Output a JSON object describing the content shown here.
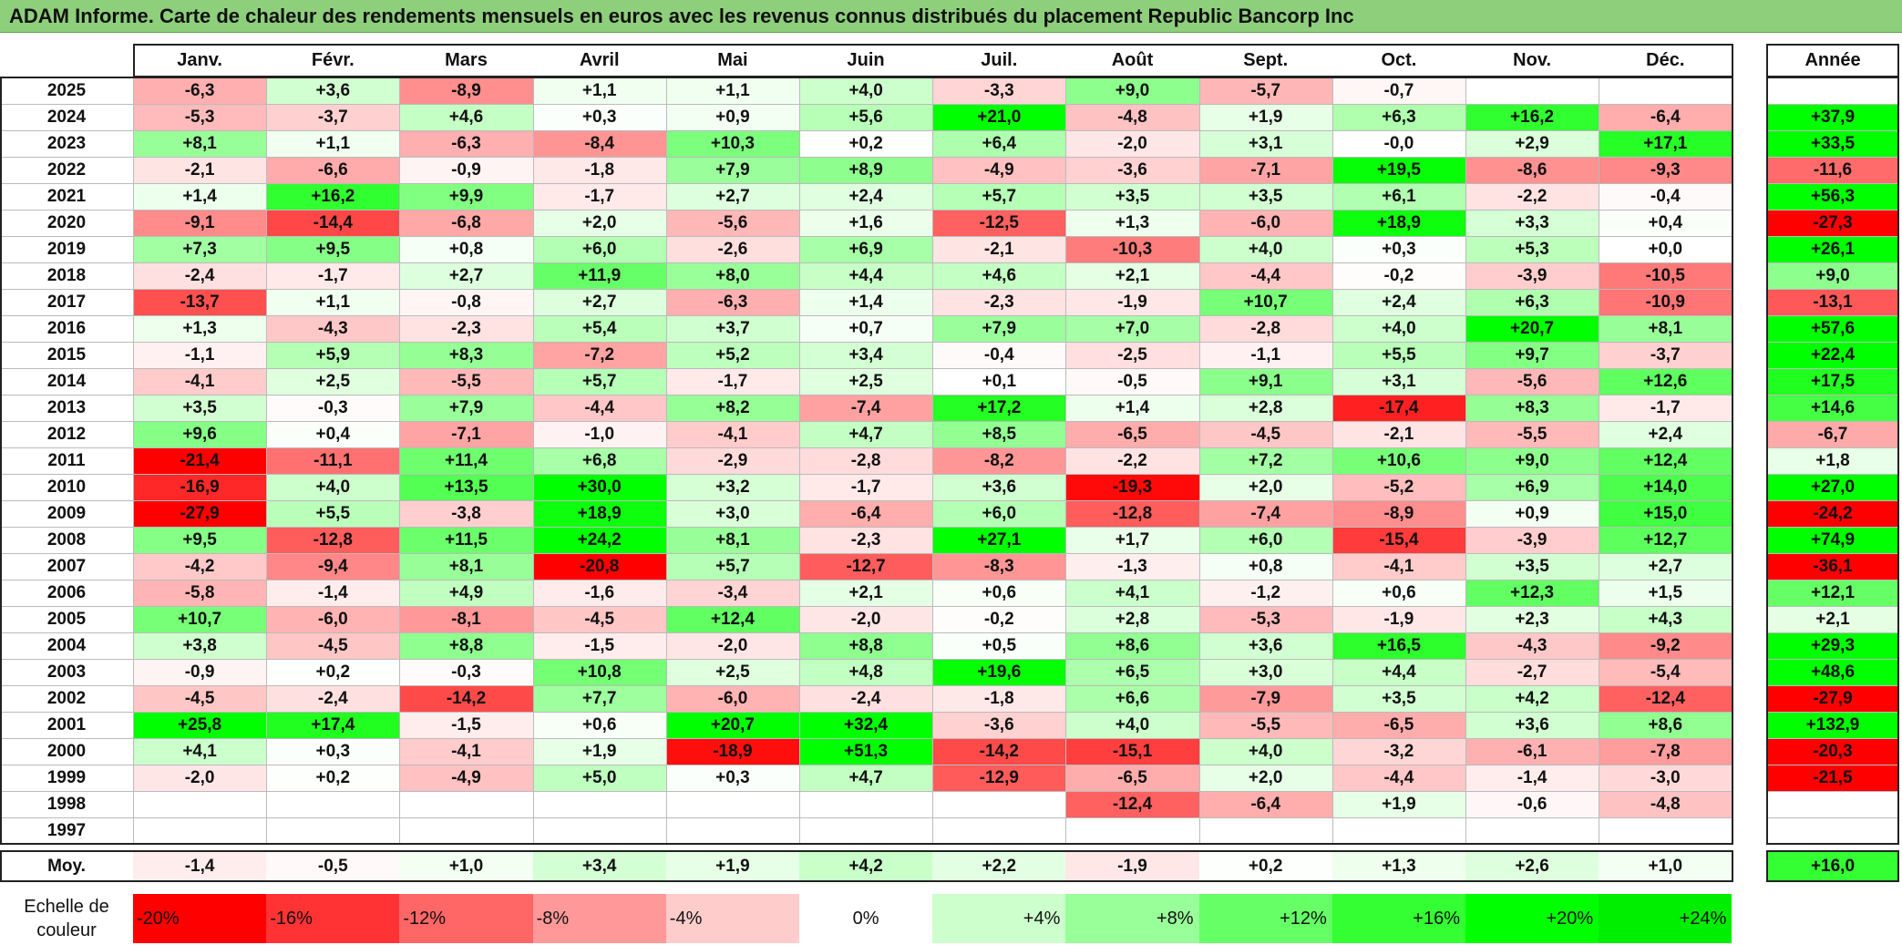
{
  "title": "ADAM Informe. Carte de chaleur des rendements mensuels en euros avec les revenus connus distribués du placement Republic Bancorp Inc",
  "chart_data": {
    "type": "heatmap",
    "columns": [
      "Janv.",
      "Févr.",
      "Mars",
      "Avril",
      "Mai",
      "Juin",
      "Juil.",
      "Août",
      "Sept.",
      "Oct.",
      "Nov.",
      "Déc."
    ],
    "year_column_label": "Année",
    "average_row_label": "Moy.",
    "rows": [
      {
        "year": "2025",
        "values": [
          "-6,3",
          "+3,6",
          "-8,9",
          "+1,1",
          "+1,1",
          "+4,0",
          "-3,3",
          "+9,0",
          "-5,7",
          "-0,7",
          "",
          ""
        ],
        "annual": ""
      },
      {
        "year": "2024",
        "values": [
          "-5,3",
          "-3,7",
          "+4,6",
          "+0,3",
          "+0,9",
          "+5,6",
          "+21,0",
          "-4,8",
          "+1,9",
          "+6,3",
          "+16,2",
          "-6,4"
        ],
        "annual": "+37,9"
      },
      {
        "year": "2023",
        "values": [
          "+8,1",
          "+1,1",
          "-6,3",
          "-8,4",
          "+10,3",
          "+0,2",
          "+6,4",
          "-2,0",
          "+3,1",
          "-0,0",
          "+2,9",
          "+17,1"
        ],
        "annual": "+33,5"
      },
      {
        "year": "2022",
        "values": [
          "-2,1",
          "-6,6",
          "-0,9",
          "-1,8",
          "+7,9",
          "+8,9",
          "-4,9",
          "-3,6",
          "-7,1",
          "+19,5",
          "-8,6",
          "-9,3"
        ],
        "annual": "-11,6"
      },
      {
        "year": "2021",
        "values": [
          "+1,4",
          "+16,2",
          "+9,9",
          "-1,7",
          "+2,7",
          "+2,4",
          "+5,7",
          "+3,5",
          "+3,5",
          "+6,1",
          "-2,2",
          "-0,4"
        ],
        "annual": "+56,3"
      },
      {
        "year": "2020",
        "values": [
          "-9,1",
          "-14,4",
          "-6,8",
          "+2,0",
          "-5,6",
          "+1,6",
          "-12,5",
          "+1,3",
          "-6,0",
          "+18,9",
          "+3,3",
          "+0,4"
        ],
        "annual": "-27,3"
      },
      {
        "year": "2019",
        "values": [
          "+7,3",
          "+9,5",
          "+0,8",
          "+6,0",
          "-2,6",
          "+6,9",
          "-2,1",
          "-10,3",
          "+4,0",
          "+0,3",
          "+5,3",
          "+0,0"
        ],
        "annual": "+26,1"
      },
      {
        "year": "2018",
        "values": [
          "-2,4",
          "-1,7",
          "+2,7",
          "+11,9",
          "+8,0",
          "+4,4",
          "+4,6",
          "+2,1",
          "-4,4",
          "-0,2",
          "-3,9",
          "-10,5"
        ],
        "annual": "+9,0"
      },
      {
        "year": "2017",
        "values": [
          "-13,7",
          "+1,1",
          "-0,8",
          "+2,7",
          "-6,3",
          "+1,4",
          "-2,3",
          "-1,9",
          "+10,7",
          "+2,4",
          "+6,3",
          "-10,9"
        ],
        "annual": "-13,1"
      },
      {
        "year": "2016",
        "values": [
          "+1,3",
          "-4,3",
          "-2,3",
          "+5,4",
          "+3,7",
          "+0,7",
          "+7,9",
          "+7,0",
          "-2,8",
          "+4,0",
          "+20,7",
          "+8,1"
        ],
        "annual": "+57,6"
      },
      {
        "year": "2015",
        "values": [
          "-1,1",
          "+5,9",
          "+8,3",
          "-7,2",
          "+5,2",
          "+3,4",
          "-0,4",
          "-2,5",
          "-1,1",
          "+5,5",
          "+9,7",
          "-3,7"
        ],
        "annual": "+22,4"
      },
      {
        "year": "2014",
        "values": [
          "-4,1",
          "+2,5",
          "-5,5",
          "+5,7",
          "-1,7",
          "+2,5",
          "+0,1",
          "-0,5",
          "+9,1",
          "+3,1",
          "-5,6",
          "+12,6"
        ],
        "annual": "+17,5"
      },
      {
        "year": "2013",
        "values": [
          "+3,5",
          "-0,3",
          "+7,9",
          "-4,4",
          "+8,2",
          "-7,4",
          "+17,2",
          "+1,4",
          "+2,8",
          "-17,4",
          "+8,3",
          "-1,7"
        ],
        "annual": "+14,6"
      },
      {
        "year": "2012",
        "values": [
          "+9,6",
          "+0,4",
          "-7,1",
          "-1,0",
          "-4,1",
          "+4,7",
          "+8,5",
          "-6,5",
          "-4,5",
          "-2,1",
          "-5,5",
          "+2,4"
        ],
        "annual": "-6,7"
      },
      {
        "year": "2011",
        "values": [
          "-21,4",
          "-11,1",
          "+11,4",
          "+6,8",
          "-2,9",
          "-2,8",
          "-8,2",
          "-2,2",
          "+7,2",
          "+10,6",
          "+9,0",
          "+12,4"
        ],
        "annual": "+1,8"
      },
      {
        "year": "2010",
        "values": [
          "-16,9",
          "+4,0",
          "+13,5",
          "+30,0",
          "+3,2",
          "-1,7",
          "+3,6",
          "-19,3",
          "+2,0",
          "-5,2",
          "+6,9",
          "+14,0"
        ],
        "annual": "+27,0"
      },
      {
        "year": "2009",
        "values": [
          "-27,9",
          "+5,5",
          "-3,8",
          "+18,9",
          "+3,0",
          "-6,4",
          "+6,0",
          "-12,8",
          "-7,4",
          "-8,9",
          "+0,9",
          "+15,0"
        ],
        "annual": "-24,2"
      },
      {
        "year": "2008",
        "values": [
          "+9,5",
          "-12,8",
          "+11,5",
          "+24,2",
          "+8,1",
          "-2,3",
          "+27,1",
          "+1,7",
          "+6,0",
          "-15,4",
          "-3,9",
          "+12,7"
        ],
        "annual": "+74,9"
      },
      {
        "year": "2007",
        "values": [
          "-4,2",
          "-9,4",
          "+8,1",
          "-20,8",
          "+5,7",
          "-12,7",
          "-8,3",
          "-1,3",
          "+0,8",
          "-4,1",
          "+3,5",
          "+2,7"
        ],
        "annual": "-36,1"
      },
      {
        "year": "2006",
        "values": [
          "-5,8",
          "-1,4",
          "+4,9",
          "-1,6",
          "-3,4",
          "+2,1",
          "+0,6",
          "+4,1",
          "-1,2",
          "+0,6",
          "+12,3",
          "+1,5"
        ],
        "annual": "+12,1"
      },
      {
        "year": "2005",
        "values": [
          "+10,7",
          "-6,0",
          "-8,1",
          "-4,5",
          "+12,4",
          "-2,0",
          "-0,2",
          "+2,8",
          "-5,3",
          "-1,9",
          "+2,3",
          "+4,3"
        ],
        "annual": "+2,1"
      },
      {
        "year": "2004",
        "values": [
          "+3,8",
          "-4,5",
          "+8,8",
          "-1,5",
          "-2,0",
          "+8,8",
          "+0,5",
          "+8,6",
          "+3,6",
          "+16,5",
          "-4,3",
          "-9,2"
        ],
        "annual": "+29,3"
      },
      {
        "year": "2003",
        "values": [
          "-0,9",
          "+0,2",
          "-0,3",
          "+10,8",
          "+2,5",
          "+4,8",
          "+19,6",
          "+6,5",
          "+3,0",
          "+4,4",
          "-2,7",
          "-5,4"
        ],
        "annual": "+48,6"
      },
      {
        "year": "2002",
        "values": [
          "-4,5",
          "-2,4",
          "-14,2",
          "+7,7",
          "-6,0",
          "-2,4",
          "-1,8",
          "+6,6",
          "-7,9",
          "+3,5",
          "+4,2",
          "-12,4"
        ],
        "annual": "-27,9"
      },
      {
        "year": "2001",
        "values": [
          "+25,8",
          "+17,4",
          "-1,5",
          "+0,6",
          "+20,7",
          "+32,4",
          "-3,6",
          "+4,0",
          "-5,5",
          "-6,5",
          "+3,6",
          "+8,6"
        ],
        "annual": "+132,9"
      },
      {
        "year": "2000",
        "values": [
          "+4,1",
          "+0,3",
          "-4,1",
          "+1,9",
          "-18,9",
          "+51,3",
          "-14,2",
          "-15,1",
          "+4,0",
          "-3,2",
          "-6,1",
          "-7,8"
        ],
        "annual": "-20,3"
      },
      {
        "year": "1999",
        "values": [
          "-2,0",
          "+0,2",
          "-4,9",
          "+5,0",
          "+0,3",
          "+4,7",
          "-12,9",
          "-6,5",
          "+2,0",
          "-4,4",
          "-1,4",
          "-3,0"
        ],
        "annual": "-21,5"
      },
      {
        "year": "1998",
        "values": [
          "",
          "",
          "",
          "",
          "",
          "",
          "",
          "-12,4",
          "-6,4",
          "+1,9",
          "-0,6",
          "-4,8"
        ],
        "annual": ""
      },
      {
        "year": "1997",
        "values": [
          "",
          "",
          "",
          "",
          "",
          "",
          "",
          "",
          "",
          "",
          "",
          ""
        ],
        "annual": ""
      }
    ],
    "average": {
      "values": [
        "-1,4",
        "-0,5",
        "+1,0",
        "+3,4",
        "+1,9",
        "+4,2",
        "+2,2",
        "-1,9",
        "+0,2",
        "+1,3",
        "+2,6",
        "+1,0"
      ],
      "annual": "+16,0"
    },
    "color_scale": {
      "label_line1": "Echelle de",
      "label_line2": "couleur",
      "steps": [
        {
          "label": "-20%",
          "value": -20,
          "color": "#ff0000"
        },
        {
          "label": "-16%",
          "value": -16,
          "color": "#ff3333"
        },
        {
          "label": "-12%",
          "value": -12,
          "color": "#ff6666"
        },
        {
          "label": "-8%",
          "value": -8,
          "color": "#ff9999"
        },
        {
          "label": "-4%",
          "value": -4,
          "color": "#ffcccc"
        },
        {
          "label": "0%",
          "value": 0,
          "color": "#ffffff"
        },
        {
          "label": "+4%",
          "value": 4,
          "color": "#ccffcc"
        },
        {
          "label": "+8%",
          "value": 8,
          "color": "#99ff99"
        },
        {
          "label": "+12%",
          "value": 12,
          "color": "#66ff66"
        },
        {
          "label": "+16%",
          "value": 16,
          "color": "#33ff33"
        },
        {
          "label": "+20%",
          "value": 20,
          "color": "#00ff00"
        },
        {
          "label": "+24%",
          "value": 24,
          "color": "#00ee00"
        }
      ]
    }
  }
}
